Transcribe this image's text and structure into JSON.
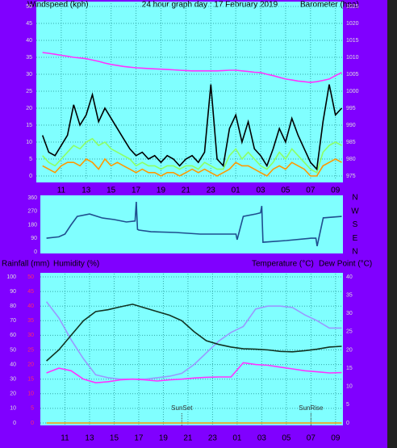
{
  "chart_data": [
    {
      "type": "line",
      "title": "24 hour graph day : 17 February 2019",
      "ylabel": "Windspeed (kph)",
      "y2label": "Barometer (hpa)",
      "x": [
        9.5,
        10,
        10.5,
        11,
        11.5,
        12,
        12.5,
        13,
        13.5,
        14,
        14.5,
        15,
        15.5,
        16,
        16.5,
        17,
        17.5,
        18,
        18.5,
        19,
        19.5,
        20,
        20.5,
        21,
        21.5,
        22,
        22.5,
        23,
        23.5,
        24,
        24.5,
        25,
        25.5,
        26,
        26.5,
        27,
        27.5,
        28,
        28.5,
        29,
        29.5,
        30,
        30.5,
        31,
        31.5,
        32,
        32.5,
        33,
        33.5
      ],
      "xlim": [
        9,
        33.6
      ],
      "xticks": [
        11,
        13,
        15,
        17,
        19,
        21,
        23,
        {
          "value": 25,
          "label": "01"
        },
        {
          "value": 27,
          "label": "03"
        },
        {
          "value": 29,
          "label": "05"
        },
        {
          "value": 31,
          "label": "07"
        },
        {
          "value": 33,
          "label": "09"
        }
      ],
      "ylim": [
        0,
        50
      ],
      "yticks": [
        0,
        5,
        10,
        15,
        20,
        25,
        30,
        35,
        40,
        45,
        50
      ],
      "y2lim": [
        975,
        1025
      ],
      "y2ticks": [
        975,
        980,
        985,
        990,
        995,
        1000,
        1005,
        1010,
        1015,
        1020,
        1025
      ],
      "grid": true,
      "series": [
        {
          "color": "#ff9900",
          "values": [
            3,
            2,
            1,
            3,
            4,
            4,
            3,
            5,
            4,
            2,
            5,
            3,
            4,
            3,
            2,
            1,
            2,
            1,
            1,
            0,
            1,
            1,
            0,
            1,
            2,
            1,
            2,
            1,
            0,
            1,
            2,
            4,
            3,
            3,
            2,
            1,
            0,
            2,
            3,
            2,
            4,
            3,
            2,
            0,
            0,
            3,
            4,
            5,
            4
          ]
        },
        {
          "color": "#8cff66",
          "values": [
            6,
            4,
            3,
            5,
            7,
            9,
            8,
            10,
            11,
            9,
            10,
            8,
            7,
            6,
            5,
            3,
            4,
            3,
            3,
            2,
            3,
            3,
            2,
            3,
            3,
            2,
            4,
            3,
            2,
            2,
            6,
            8,
            5,
            7,
            5,
            3,
            2,
            4,
            7,
            5,
            8,
            6,
            4,
            2,
            1,
            7,
            9,
            10,
            9
          ]
        },
        {
          "color": "#000000",
          "values": [
            12,
            7,
            6,
            9,
            12,
            21,
            15,
            18,
            24,
            16,
            20,
            17,
            14,
            11,
            8,
            6,
            7,
            5,
            6,
            4,
            6,
            5,
            3,
            5,
            6,
            4,
            7,
            27,
            5,
            3,
            14,
            18,
            10,
            16,
            8,
            6,
            3,
            8,
            14,
            10,
            17,
            12,
            8,
            4,
            2,
            16,
            27,
            18,
            20
          ]
        },
        {
          "color": "#ff33ff",
          "axis": "y2",
          "values": [
            1011.4,
            1011.2,
            1010.9,
            1010.6,
            1010.3,
            1010.0,
            1009.8,
            1009.6,
            1009.2,
            1008.8,
            1008.3,
            1007.9,
            1007.6,
            1007.3,
            1007.1,
            1006.9,
            1006.8,
            1006.7,
            1006.6,
            1006.5,
            1006.4,
            1006.3,
            1006.2,
            1006.1,
            1006.0,
            1006.0,
            1006.0,
            1006.0,
            1006.0,
            1006.1,
            1006.2,
            1006.2,
            1006.0,
            1005.8,
            1005.6,
            1005.5,
            1005.0,
            1004.6,
            1004.1,
            1003.6,
            1003.3,
            1003.0,
            1002.8,
            1002.6,
            1002.8,
            1003.2,
            1003.6,
            1004.6,
            1005.5
          ]
        }
      ]
    },
    {
      "type": "line",
      "x": [
        9.5,
        10.5,
        11,
        11.5,
        12,
        13,
        14,
        15,
        16,
        16.7,
        16.8,
        16.9,
        17,
        18,
        20,
        22,
        24,
        24.9,
        25,
        25.5,
        26.5,
        26.9,
        27,
        27.1,
        29,
        31,
        31.4,
        31.5,
        32,
        33.5
      ],
      "xlim": [
        9,
        33.6
      ],
      "ylim": [
        0,
        360
      ],
      "yticks": [
        0,
        90,
        180,
        270,
        360
      ],
      "y2ticks": [
        {
          "value": 360,
          "label": "N"
        },
        {
          "value": 270,
          "label": "W"
        },
        {
          "value": 180,
          "label": "S"
        },
        {
          "value": 90,
          "label": "E"
        },
        {
          "value": 0,
          "label": "N"
        }
      ],
      "series": [
        {
          "color": "#1f4f8f",
          "values": [
            91,
            100,
            118,
            180,
            236,
            252,
            226,
            215,
            199,
            205,
            333,
            150,
            145,
            134,
            129,
            118,
            118,
            118,
            81,
            236,
            252,
            260,
            306,
            64,
            75,
            91,
            91,
            38,
            226,
            236
          ]
        }
      ]
    },
    {
      "type": "line",
      "ylabel": "Humidity (%)",
      "y3label": "Rainfall (mm)",
      "y2label": "Temperature (°C)",
      "dew_point_label": "Dew Point (°C)",
      "x": [
        9.5,
        10.5,
        11.5,
        12.5,
        13.5,
        14.5,
        15.5,
        16.5,
        17.5,
        18.5,
        19.5,
        20.5,
        21.5,
        22.5,
        23.5,
        24.5,
        25.5,
        26.5,
        27.5,
        28.5,
        29.5,
        30.5,
        31.5,
        32.5,
        33.5
      ],
      "xlim": [
        9,
        33.6
      ],
      "xticks": [
        11,
        13,
        15,
        17,
        19,
        21,
        23,
        {
          "value": 25,
          "label": "01"
        },
        {
          "value": 27,
          "label": "03"
        },
        {
          "value": 29,
          "label": "05"
        },
        {
          "value": 31,
          "label": "07"
        },
        {
          "value": 33,
          "label": "09"
        }
      ],
      "ylim": [
        0,
        100
      ],
      "yticks": [
        0,
        10,
        20,
        30,
        40,
        50,
        60,
        70,
        80,
        90,
        100
      ],
      "y2lim": [
        0,
        40
      ],
      "y2ticks": [
        0,
        5,
        10,
        15,
        20,
        25,
        30,
        35,
        40
      ],
      "y3lim": [
        0,
        50
      ],
      "y3ticks": [
        0,
        5,
        10,
        15,
        20,
        25,
        30,
        35,
        40,
        45,
        50
      ],
      "grid": true,
      "annotations": [
        {
          "text": "SunSet",
          "x": 20.5
        },
        {
          "text": "SunRise",
          "x": 31
        }
      ],
      "series": [
        {
          "color": "#ff9900",
          "axis": "y3",
          "values": [
            0,
            0,
            0,
            0,
            0,
            0,
            0,
            0,
            0,
            0,
            0,
            0,
            0,
            0,
            0,
            0,
            0,
            0,
            0,
            0,
            0,
            0,
            0,
            0,
            0
          ]
        },
        {
          "color": "#9999ff",
          "values": [
            83,
            72,
            57,
            44,
            33,
            31,
            30,
            30,
            30,
            31,
            32,
            34,
            40,
            48,
            56,
            62,
            66,
            78,
            80,
            80,
            79,
            74,
            70,
            65,
            65
          ]
        },
        {
          "color": "#ff33ff",
          "axis": "y2",
          "values": [
            13.7,
            15,
            14.3,
            12,
            11,
            11.3,
            11.8,
            12,
            11.8,
            11.5,
            11.8,
            12,
            12.3,
            12.5,
            12.6,
            12.6,
            16.5,
            16,
            15.8,
            15.3,
            14.8,
            14.3,
            14,
            13.7,
            13.8
          ]
        },
        {
          "color": "#113322",
          "axis": "y2",
          "values": [
            17,
            20,
            24,
            28,
            30.5,
            31,
            31.8,
            32.5,
            31.5,
            30.5,
            29.5,
            28,
            25,
            22.5,
            21.5,
            20.8,
            20.3,
            20.2,
            20,
            19.6,
            19.5,
            19.8,
            20.2,
            20.8,
            21
          ]
        }
      ]
    }
  ]
}
